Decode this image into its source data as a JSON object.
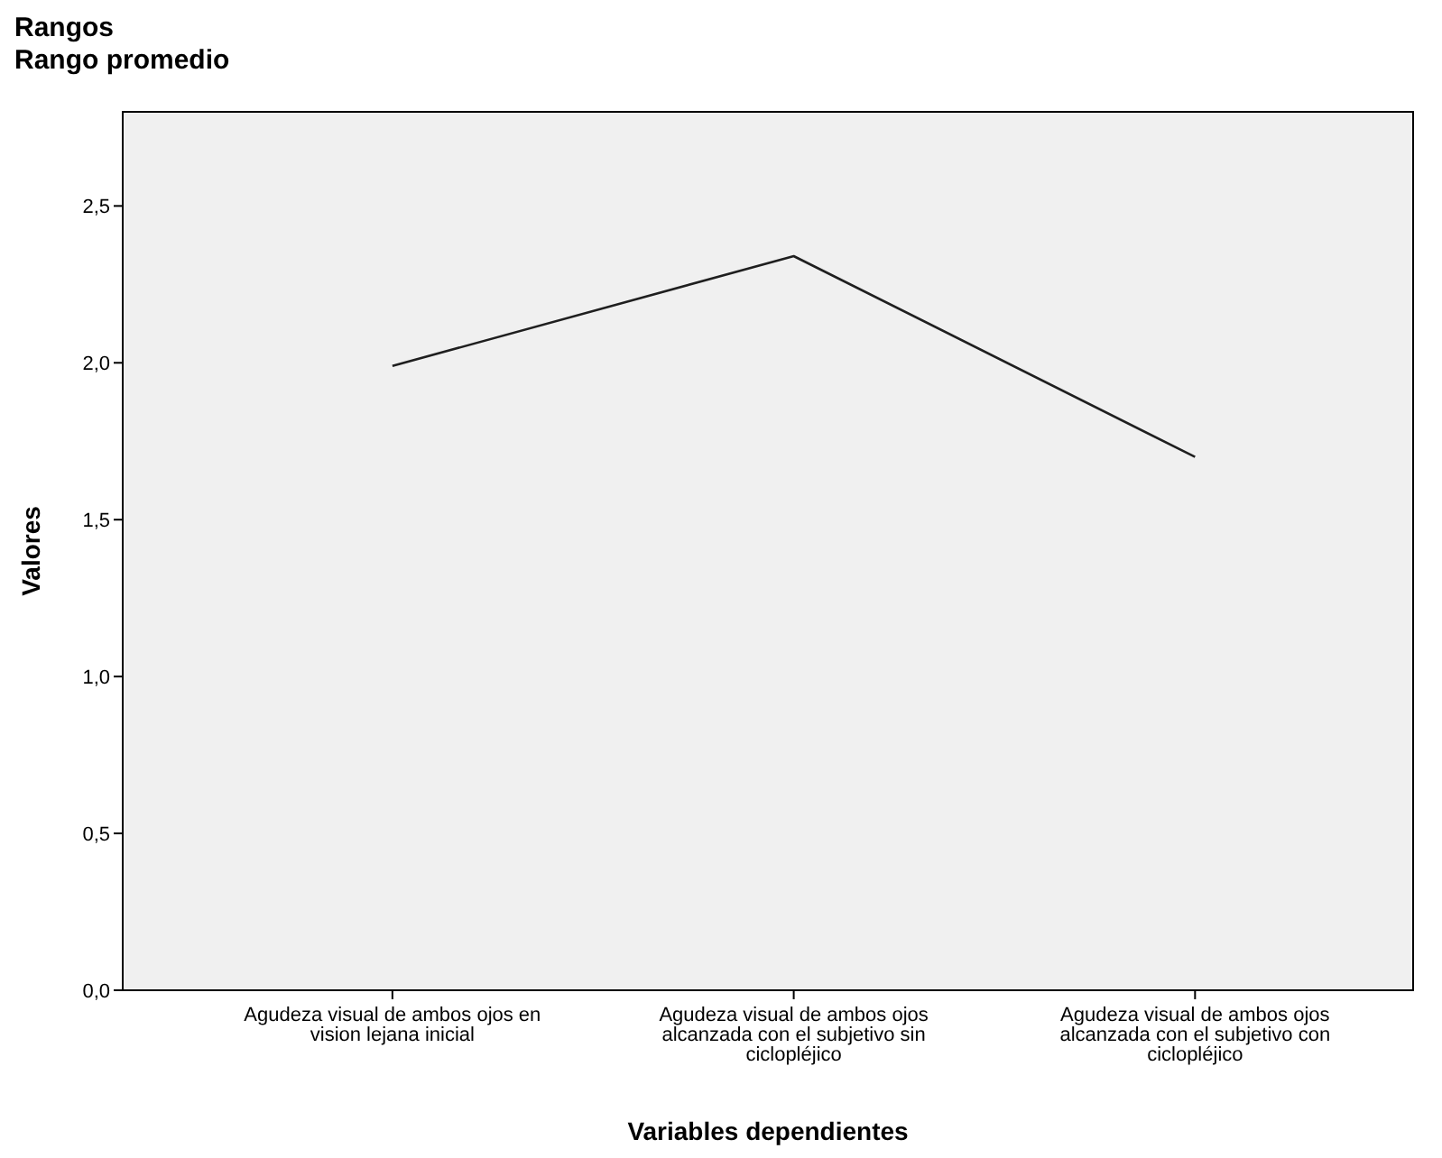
{
  "chart_data": {
    "type": "line",
    "title": "Rangos",
    "subtitle": "Rango promedio",
    "xlabel": "Variables dependientes",
    "ylabel": "Valores",
    "categories": [
      "Agudeza visual de ambos ojos en vision lejana inicial",
      "Agudeza visual de ambos ojos alcanzada con el subjetivo sin ciclopléjico",
      "Agudeza visual de ambos ojos alcanzada con el subjetivo con ciclopléjico"
    ],
    "series": [
      {
        "color": "#1f1f1f",
        "values": [
          1.99,
          2.34,
          1.7
        ]
      }
    ],
    "ylim": [
      0,
      2.8
    ],
    "yticks": [
      {
        "value": 0,
        "label": "0,0"
      },
      {
        "value": 0.5,
        "label": "0,5"
      },
      {
        "value": 1,
        "label": "1,0"
      },
      {
        "value": 1.5,
        "label": "1,5"
      },
      {
        "value": 2,
        "label": "2,0"
      },
      {
        "value": 2.5,
        "label": "2,5"
      }
    ],
    "grid": false,
    "marker": "none",
    "line_style": "solid"
  }
}
